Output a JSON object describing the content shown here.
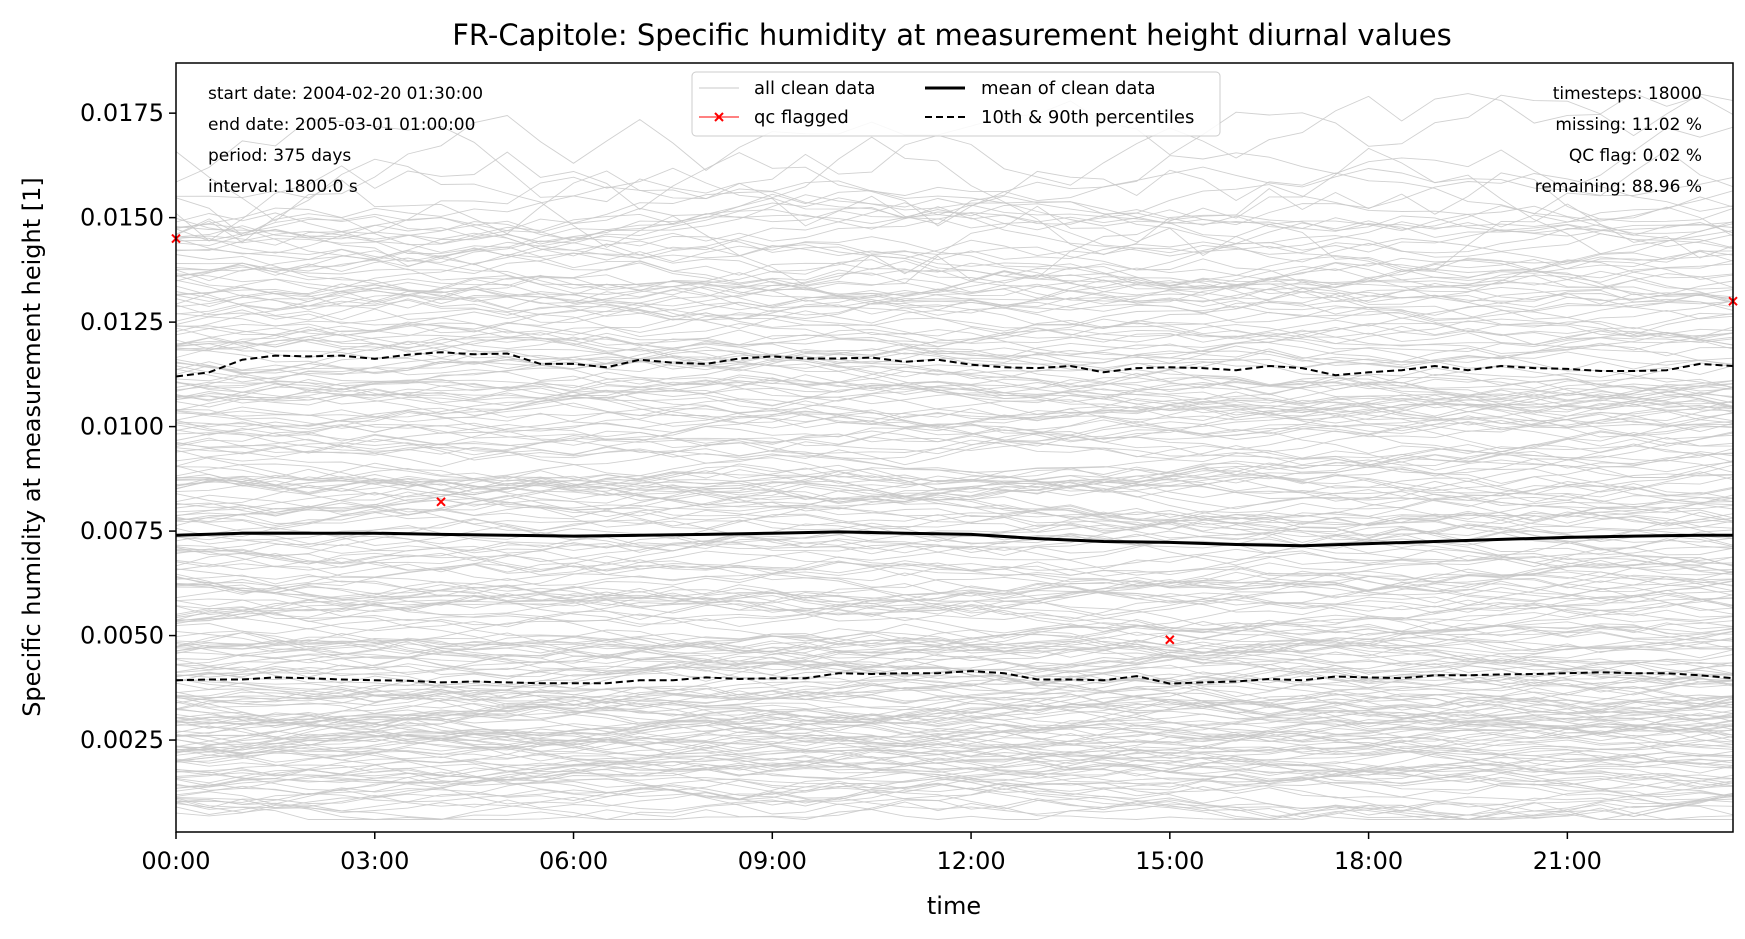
{
  "chart_data": {
    "type": "line",
    "title": "FR-Capitole: Specific humidity at measurement height diurnal values",
    "xlabel": "time",
    "ylabel": "Specific humidity at measurement height [1]",
    "xlim_hours": [
      0,
      23.5
    ],
    "ylim": [
      0.0003,
      0.0187
    ],
    "x_tick_labels": [
      "00:00",
      "03:00",
      "06:00",
      "09:00",
      "12:00",
      "15:00",
      "18:00",
      "21:00"
    ],
    "x_tick_hours": [
      0,
      3,
      6,
      9,
      12,
      15,
      18,
      21
    ],
    "y_ticks": [
      0.0025,
      0.005,
      0.0075,
      0.01,
      0.0125,
      0.015,
      0.0175
    ],
    "y_tick_labels": [
      "0.0025",
      "0.0050",
      "0.0075",
      "0.0100",
      "0.0125",
      "0.0150",
      "0.0175"
    ],
    "grid": false,
    "stats_left": [
      "start date: 2004-02-20 01:30:00",
      "end date: 2005-03-01 01:00:00",
      "period: 375 days",
      "interval: 1800.0 s"
    ],
    "stats_right": [
      "timesteps: 18000",
      "missing: 11.02 %",
      "QC flag: 0.02 %",
      "remaining: 88.96 %"
    ],
    "legend": {
      "placement": "top-center",
      "entries": [
        {
          "label": "all clean data",
          "style": "thin-gray"
        },
        {
          "label": "qc flagged",
          "style": "red-x"
        },
        {
          "label": "mean of clean data",
          "style": "thick-black"
        },
        {
          "label": "10th & 90th percentiles",
          "style": "dashed-black"
        }
      ]
    },
    "colors": {
      "clean": "#c8c8c8",
      "flagged": "#ff0000",
      "mean": "#000000",
      "percentiles": "#000000"
    },
    "series": [
      {
        "name": "mean of clean data",
        "x_hours": [
          0,
          1,
          2,
          3,
          4,
          5,
          6,
          7,
          8,
          9,
          10,
          11,
          12,
          13,
          14,
          15,
          16,
          17,
          18,
          19,
          20,
          21,
          22,
          23,
          23.5
        ],
        "values": [
          0.0074,
          0.00745,
          0.00745,
          0.00745,
          0.00742,
          0.0074,
          0.00738,
          0.0074,
          0.00742,
          0.00745,
          0.00748,
          0.00745,
          0.00742,
          0.00732,
          0.00725,
          0.00723,
          0.00718,
          0.00715,
          0.0072,
          0.00725,
          0.0073,
          0.00735,
          0.00738,
          0.0074,
          0.0074
        ]
      },
      {
        "name": "90th percentile",
        "x_hours": [
          0,
          0.5,
          1,
          1.5,
          2,
          2.5,
          3,
          3.5,
          4,
          4.5,
          5,
          5.5,
          6,
          6.5,
          7,
          7.5,
          8,
          8.5,
          9,
          9.5,
          10,
          10.5,
          11,
          11.5,
          12,
          12.5,
          13,
          13.5,
          14,
          14.5,
          15,
          15.5,
          16,
          16.5,
          17,
          17.5,
          18,
          18.5,
          19,
          19.5,
          20,
          20.5,
          21,
          21.5,
          22,
          22.5,
          23,
          23.5
        ],
        "values": [
          0.0112,
          0.0113,
          0.0116,
          0.0117,
          0.01168,
          0.0117,
          0.01162,
          0.01172,
          0.01178,
          0.01173,
          0.01175,
          0.0115,
          0.0115,
          0.01142,
          0.0116,
          0.01153,
          0.0115,
          0.01163,
          0.01168,
          0.01163,
          0.01163,
          0.01165,
          0.01155,
          0.0116,
          0.01148,
          0.01142,
          0.0114,
          0.01145,
          0.0113,
          0.0114,
          0.01142,
          0.0114,
          0.01135,
          0.01145,
          0.0114,
          0.01123,
          0.0113,
          0.01135,
          0.01145,
          0.01135,
          0.01145,
          0.0114,
          0.01138,
          0.01133,
          0.01133,
          0.01135,
          0.0115,
          0.01145
        ]
      },
      {
        "name": "10th percentile",
        "x_hours": [
          0,
          0.5,
          1,
          1.5,
          2,
          2.5,
          3,
          3.5,
          4,
          4.5,
          5,
          5.5,
          6,
          6.5,
          7,
          7.5,
          8,
          8.5,
          9,
          9.5,
          10,
          10.5,
          11,
          11.5,
          12,
          12.5,
          13,
          13.5,
          14,
          14.5,
          15,
          15.5,
          16,
          16.5,
          17,
          17.5,
          18,
          18.5,
          19,
          19.5,
          20,
          20.5,
          21,
          21.5,
          22,
          22.5,
          23,
          23.5
        ],
        "values": [
          0.00393,
          0.00395,
          0.00395,
          0.004,
          0.00398,
          0.00395,
          0.00393,
          0.00392,
          0.00388,
          0.0039,
          0.00388,
          0.00386,
          0.00386,
          0.00386,
          0.00393,
          0.00393,
          0.004,
          0.00396,
          0.00398,
          0.00398,
          0.0041,
          0.00408,
          0.0041,
          0.0041,
          0.00415,
          0.0041,
          0.00395,
          0.00395,
          0.00393,
          0.00403,
          0.00385,
          0.00388,
          0.0039,
          0.00396,
          0.00393,
          0.00402,
          0.004,
          0.00398,
          0.00405,
          0.00405,
          0.00407,
          0.00408,
          0.0041,
          0.00412,
          0.0041,
          0.0041,
          0.00405,
          0.00398
        ]
      },
      {
        "name": "qc flagged",
        "points": [
          {
            "x_hours": 0.0,
            "value": 0.0145
          },
          {
            "x_hours": 4.0,
            "value": 0.0082
          },
          {
            "x_hours": 15.0,
            "value": 0.0049
          },
          {
            "x_hours": 23.5,
            "value": 0.013
          }
        ]
      }
    ],
    "clean_data_bands": [
      {
        "start": 0.0008,
        "end": 0.001
      },
      {
        "start": 0.0012,
        "end": 0.0014
      },
      {
        "start": 0.0015,
        "end": 0.0016
      },
      {
        "start": 0.0018,
        "end": 0.0019
      },
      {
        "start": 0.002,
        "end": 0.0022
      },
      {
        "start": 0.0023,
        "end": 0.0024
      },
      {
        "start": 0.0025,
        "end": 0.0026
      },
      {
        "start": 0.0027,
        "end": 0.0029
      },
      {
        "start": 0.003,
        "end": 0.0031
      },
      {
        "start": 0.0032,
        "end": 0.0034
      },
      {
        "start": 0.0035,
        "end": 0.0036
      },
      {
        "start": 0.0038,
        "end": 0.004
      },
      {
        "start": 0.0041,
        "end": 0.0043
      },
      {
        "start": 0.0045,
        "end": 0.0046
      },
      {
        "start": 0.0048,
        "end": 0.005
      },
      {
        "start": 0.0052,
        "end": 0.0054
      },
      {
        "start": 0.0055,
        "end": 0.0057
      },
      {
        "start": 0.006,
        "end": 0.0062
      },
      {
        "start": 0.0064,
        "end": 0.0066
      },
      {
        "start": 0.0068,
        "end": 0.007
      },
      {
        "start": 0.0072,
        "end": 0.0074
      },
      {
        "start": 0.0076,
        "end": 0.0078
      },
      {
        "start": 0.008,
        "end": 0.0082
      },
      {
        "start": 0.0084,
        "end": 0.0086
      },
      {
        "start": 0.0088,
        "end": 0.009
      },
      {
        "start": 0.0092,
        "end": 0.0094
      },
      {
        "start": 0.0096,
        "end": 0.0098
      },
      {
        "start": 0.01,
        "end": 0.0102
      },
      {
        "start": 0.0104,
        "end": 0.0106
      },
      {
        "start": 0.0108,
        "end": 0.011
      },
      {
        "start": 0.0112,
        "end": 0.0114
      },
      {
        "start": 0.0116,
        "end": 0.0118
      },
      {
        "start": 0.012,
        "end": 0.0122
      },
      {
        "start": 0.0124,
        "end": 0.0126
      },
      {
        "start": 0.0128,
        "end": 0.0131
      },
      {
        "start": 0.0132,
        "end": 0.0135
      },
      {
        "start": 0.0137,
        "end": 0.014
      },
      {
        "start": 0.0142,
        "end": 0.0145
      },
      {
        "start": 0.0146,
        "end": 0.015
      },
      {
        "start": 0.015,
        "end": 0.0162
      }
    ]
  }
}
